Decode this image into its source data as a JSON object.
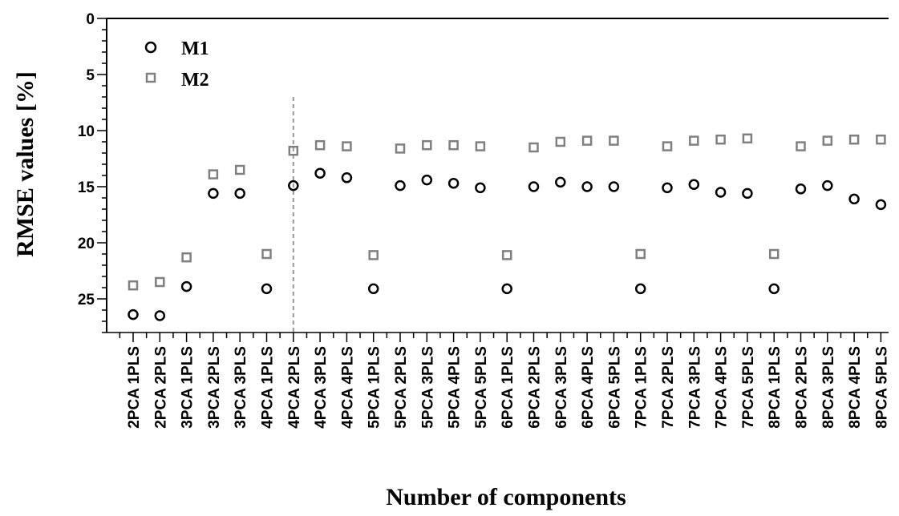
{
  "chart_data": {
    "type": "scatter",
    "title": "",
    "xlabel": "Number of components",
    "ylabel": "RMSE values [%]",
    "y_axis_inverted": true,
    "ylim": [
      0,
      28
    ],
    "yticks": [
      0,
      5,
      10,
      15,
      20,
      25
    ],
    "y_minor_step": 1,
    "grid": false,
    "legend_position": "top-left",
    "categories": [
      "2PCA 1PLS",
      "2PCA 2PLS",
      "3PCA 1PLS",
      "3PCA 2PLS",
      "3PCA 3PLS",
      "4PCA 1PLS",
      "4PCA 2PLS",
      "4PCA 3PLS",
      "4PCA 4PLS",
      "5PCA 1PLS",
      "5PCA 2PLS",
      "5PCA 3PLS",
      "5PCA 4PLS",
      "5PCA 5PLS",
      "6PCA 1PLS",
      "6PCA 2PLS",
      "6PCA 3PLS",
      "6PCA 4PLS",
      "6PCA 5PLS",
      "7PCA 1PLS",
      "7PCA 2PLS",
      "7PCA 3PLS",
      "7PCA 4PLS",
      "7PCA 5PLS",
      "8PCA 1PLS",
      "8PCA 2PLS",
      "8PCA 3PLS",
      "8PCA 4PLS",
      "8PCA 5PLS"
    ],
    "reference_line_category": "4PCA 2PLS",
    "series": [
      {
        "name": "M1",
        "marker": "circle",
        "color": "#000000",
        "values": [
          26.4,
          26.5,
          23.9,
          15.6,
          15.6,
          24.1,
          14.9,
          13.8,
          14.2,
          24.1,
          14.9,
          14.4,
          14.7,
          15.1,
          24.1,
          15.0,
          14.6,
          15.0,
          15.0,
          24.1,
          15.1,
          14.8,
          15.5,
          15.6,
          24.1,
          15.2,
          14.9,
          16.1,
          16.6
        ]
      },
      {
        "name": "M2",
        "marker": "square",
        "color": "#808080",
        "values": [
          23.8,
          23.5,
          21.3,
          13.9,
          13.5,
          21.0,
          11.8,
          11.3,
          11.4,
          21.1,
          11.6,
          11.3,
          11.3,
          11.4,
          21.1,
          11.5,
          11.0,
          10.9,
          10.9,
          21.0,
          11.4,
          10.9,
          10.8,
          10.7,
          21.0,
          11.4,
          10.9,
          10.8,
          10.8
        ]
      }
    ]
  }
}
